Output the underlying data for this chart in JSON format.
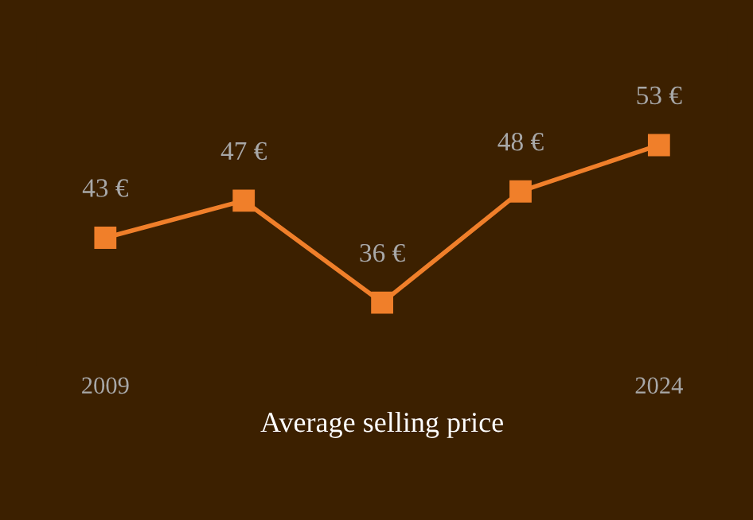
{
  "chart_data": {
    "type": "line",
    "xlabel": "Average selling price",
    "categories": [
      "2009",
      null,
      null,
      null,
      "2024"
    ],
    "series": [
      {
        "color": "#f07f2a",
        "values": [
          43,
          47,
          36,
          48,
          53
        ],
        "value_labels": [
          "43 €",
          "47 €",
          "36 €",
          "48 €",
          "53 €"
        ]
      }
    ],
    "marker": "square",
    "line_style": "solid",
    "grid": false,
    "legend": false,
    "tick_labels": "x"
  }
}
